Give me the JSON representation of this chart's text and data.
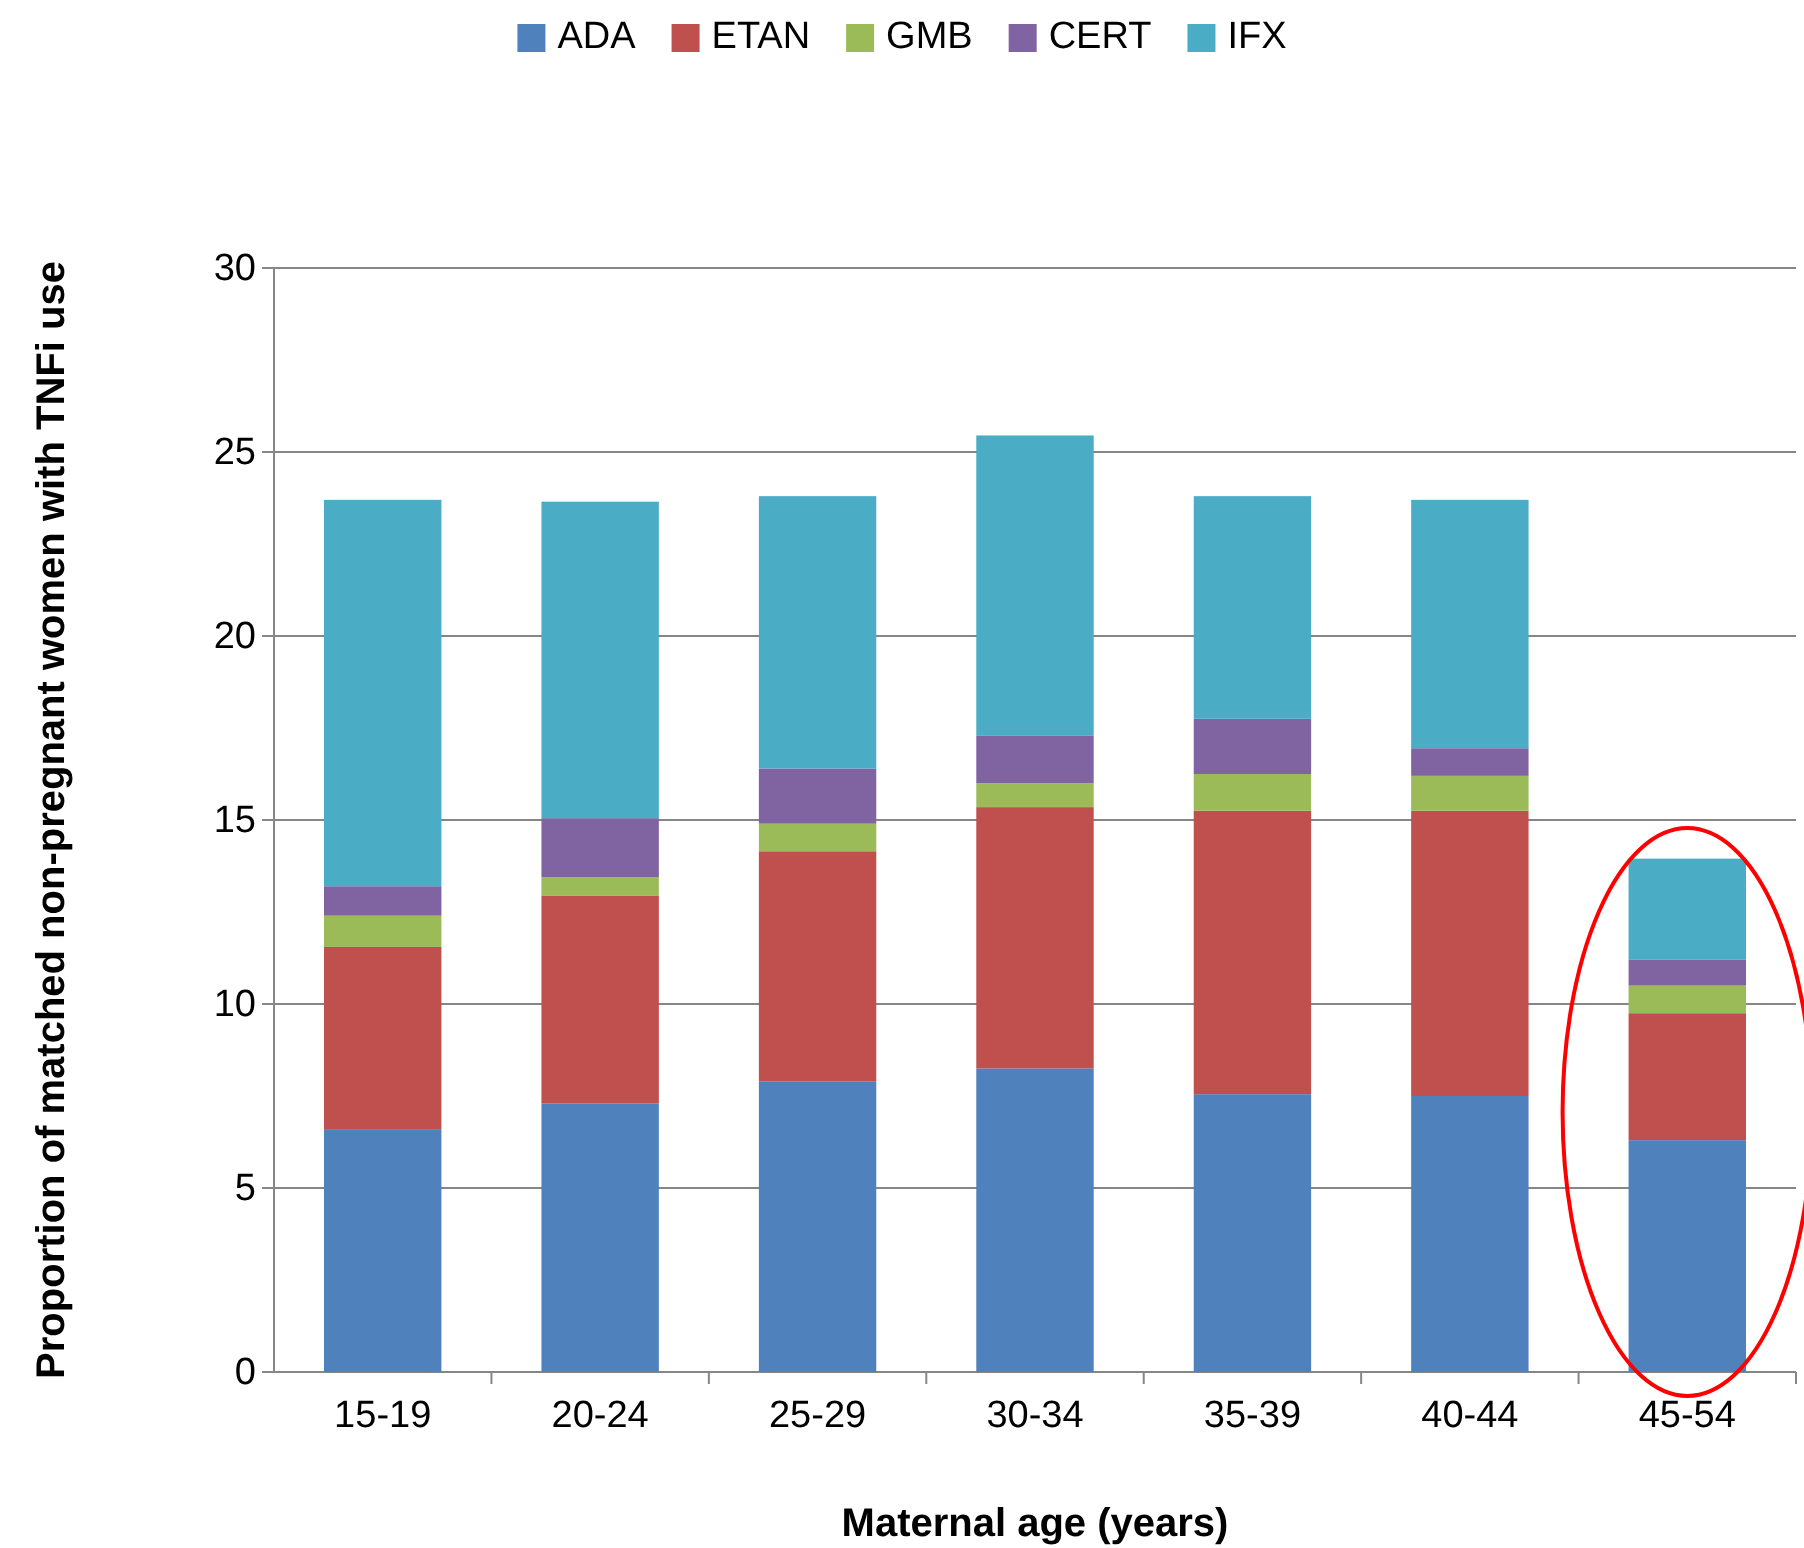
{
  "chart_data": {
    "type": "bar",
    "stacked": true,
    "xlabel": "Maternal age (years)",
    "ylabel": "Proportion of matched non-pregnant women with TNFi use",
    "categories": [
      "15-19",
      "20-24",
      "25-29",
      "30-34",
      "35-39",
      "40-44",
      "45-54"
    ],
    "series": [
      {
        "name": "ADA",
        "color": "#4f81bd",
        "values": [
          6.6,
          7.3,
          7.9,
          8.25,
          7.55,
          7.5,
          6.3
        ]
      },
      {
        "name": "ETAN",
        "color": "#c0504d",
        "values": [
          4.95,
          5.65,
          6.25,
          7.1,
          7.7,
          7.75,
          3.45
        ]
      },
      {
        "name": "GMB",
        "color": "#9bbb59",
        "values": [
          0.85,
          0.5,
          0.75,
          0.65,
          1.0,
          0.95,
          0.75
        ]
      },
      {
        "name": "CERT",
        "color": "#8064a2",
        "values": [
          0.8,
          1.6,
          1.5,
          1.3,
          1.5,
          0.75,
          0.7
        ]
      },
      {
        "name": "IFX",
        "color": "#4bacc6",
        "values": [
          10.5,
          8.6,
          7.4,
          8.15,
          6.05,
          6.75,
          2.75
        ]
      }
    ],
    "ylim": [
      0,
      30
    ],
    "yticks": [
      0,
      5,
      10,
      15,
      20,
      25,
      30
    ],
    "grid": "y",
    "legend": "top"
  }
}
